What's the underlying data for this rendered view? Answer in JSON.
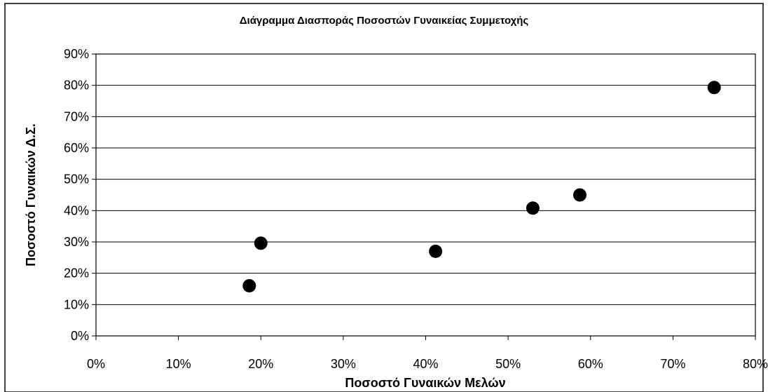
{
  "chart_data": {
    "type": "scatter",
    "title": "Διάγραμμα Διασποράς Ποσοστών Γυναικείας Συμμετοχής",
    "xlabel": "Ποσοστό Γυναικών Μελών",
    "ylabel": "Ποσοστό Γυναικών Δ.Σ.",
    "xlim": [
      0,
      80
    ],
    "ylim": [
      0,
      90
    ],
    "x_ticks": [
      "0%",
      "10%",
      "20%",
      "30%",
      "40%",
      "50%",
      "60%",
      "70%",
      "80%"
    ],
    "y_ticks": [
      "0%",
      "10%",
      "20%",
      "30%",
      "40%",
      "50%",
      "60%",
      "70%",
      "80%",
      "90%"
    ],
    "x_tick_values": [
      0,
      10,
      20,
      30,
      40,
      50,
      60,
      70,
      80
    ],
    "y_tick_values": [
      0,
      10,
      20,
      30,
      40,
      50,
      60,
      70,
      80,
      90
    ],
    "grid": "horizontal",
    "legend": "none",
    "marker_color": "#000000",
    "points": [
      {
        "x": 18.6,
        "y": 16.0
      },
      {
        "x": 20.0,
        "y": 29.6
      },
      {
        "x": 41.2,
        "y": 27.0
      },
      {
        "x": 53.0,
        "y": 40.8
      },
      {
        "x": 58.7,
        "y": 45.0
      },
      {
        "x": 75.0,
        "y": 79.3
      }
    ]
  }
}
